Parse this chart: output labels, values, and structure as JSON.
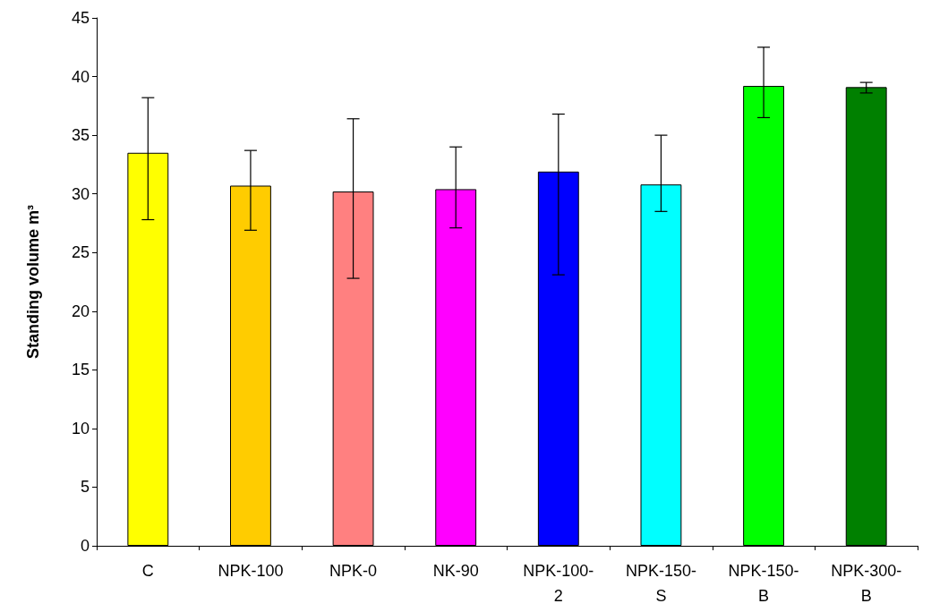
{
  "chart_data": {
    "type": "bar",
    "ylabel": "Standing volume m³",
    "categories": [
      "C",
      "NPK-100",
      "NPK-0",
      "NK-90",
      "NPK-100-2",
      "NPK-150-S",
      "NPK-150-B",
      "NPK-300-B"
    ],
    "values": [
      33.5,
      30.7,
      30.2,
      30.4,
      31.9,
      30.8,
      39.2,
      39.1
    ],
    "colors": [
      "#ffff00",
      "#ffcc00",
      "#ff8080",
      "#ff00ff",
      "#0000ff",
      "#00ffff",
      "#00ff00",
      "#008000"
    ],
    "errors": [
      [
        27.8,
        38.2
      ],
      [
        26.9,
        33.7
      ],
      [
        22.8,
        36.4
      ],
      [
        27.1,
        34.0
      ],
      [
        23.1,
        36.8
      ],
      [
        28.5,
        35.0
      ],
      [
        36.5,
        42.5
      ],
      [
        38.6,
        39.5
      ]
    ],
    "ylim": [
      0,
      45
    ],
    "yticks": [
      0,
      5,
      10,
      15,
      20,
      25,
      30,
      35,
      40,
      45
    ],
    "grid": false
  }
}
